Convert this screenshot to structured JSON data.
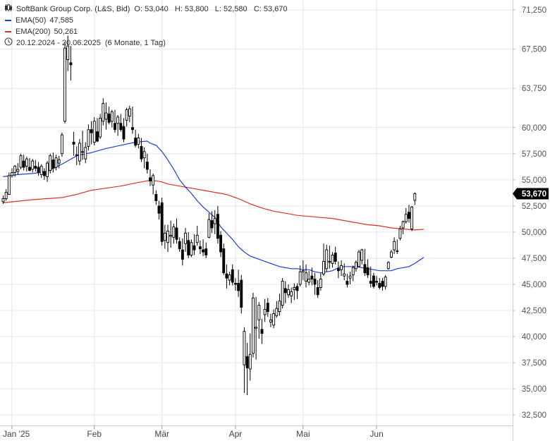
{
  "legend": {
    "instrument": "SoftBank Group Corp. (L&S, Bid)",
    "ohlc": "O: 53,040   H: 53,800   L: 52,580   C: 53,670",
    "ema50_label": "EMA(50)",
    "ema50_value": "47,585",
    "ema200_label": "EMA(200)",
    "ema200_value": "50,261",
    "range": "20.12.2024 - 20.06.2025",
    "period": "(6 Monate, 1 Tag)"
  },
  "colors": {
    "ema50": "#1a3ed6",
    "ema200": "#e0301e",
    "candle": "#000000",
    "grid": "#e6e6e6",
    "last_label_bg": "#000000"
  },
  "chart_data": {
    "type": "candlestick",
    "title": "SoftBank Group Corp. (L&S, Bid)",
    "ylim": [
      31500,
      72200
    ],
    "y_ticks": [
      {
        "v": 32500,
        "label": "32,500"
      },
      {
        "v": 35000,
        "label": "35,000"
      },
      {
        "v": 37500,
        "label": "37,500"
      },
      {
        "v": 40000,
        "label": "40,000"
      },
      {
        "v": 42500,
        "label": "42,500"
      },
      {
        "v": 45000,
        "label": "45,000"
      },
      {
        "v": 47500,
        "label": "47,500"
      },
      {
        "v": 50000,
        "label": "50,000"
      },
      {
        "v": 52500,
        "label": "52,500"
      },
      {
        "v": 55000,
        "label": "55,000"
      },
      {
        "v": 57500,
        "label": "57,500"
      },
      {
        "v": 60000,
        "label": "60,000"
      },
      {
        "v": 63750,
        "label": "63,750"
      },
      {
        "v": 67500,
        "label": "67,500"
      },
      {
        "v": 71250,
        "label": "71,250"
      }
    ],
    "x_ticks": [
      {
        "i": 3,
        "label": "Jan '25"
      },
      {
        "i": 31,
        "label": "Feb"
      },
      {
        "i": 54,
        "label": "Mär"
      },
      {
        "i": 79,
        "label": "Apr"
      },
      {
        "i": 102,
        "label": "Mai"
      },
      {
        "i": 127,
        "label": "Jun"
      }
    ],
    "last_price_label": "53,670",
    "last_price": 53670,
    "candles": [
      [
        52900,
        53500,
        52700,
        53200
      ],
      [
        53200,
        54100,
        53000,
        53800
      ],
      [
        53600,
        55700,
        53600,
        55400
      ],
      [
        55400,
        56100,
        55200,
        55700
      ],
      [
        55700,
        56400,
        55300,
        56300
      ],
      [
        55800,
        56600,
        55500,
        56000
      ],
      [
        56200,
        57500,
        56000,
        57300
      ],
      [
        56800,
        57400,
        55900,
        56200
      ],
      [
        56300,
        57200,
        55800,
        57000
      ],
      [
        56200,
        57100,
        55800,
        55900
      ],
      [
        56000,
        57000,
        55700,
        56800
      ],
      [
        56300,
        56900,
        55800,
        56100
      ],
      [
        56200,
        56700,
        55400,
        55700
      ],
      [
        55500,
        56500,
        55200,
        56300
      ],
      [
        55800,
        56100,
        55000,
        55400
      ],
      [
        55300,
        56800,
        54800,
        56600
      ],
      [
        55900,
        57500,
        55600,
        57300
      ],
      [
        56900,
        57600,
        55700,
        56100
      ],
      [
        56200,
        57400,
        55900,
        57100
      ],
      [
        56600,
        57300,
        56100,
        56900
      ],
      [
        57500,
        59500,
        57200,
        59300
      ],
      [
        60600,
        68200,
        60400,
        67600
      ],
      [
        66500,
        68800,
        65400,
        67800
      ],
      [
        66200,
        67800,
        64500,
        66000
      ],
      [
        58600,
        59600,
        57300,
        58400
      ],
      [
        57400,
        58200,
        56400,
        57400
      ],
      [
        56800,
        58900,
        56400,
        58500
      ],
      [
        57700,
        59700,
        56900,
        57700
      ],
      [
        57000,
        58600,
        56600,
        58100
      ],
      [
        58200,
        60300,
        57800,
        59800
      ],
      [
        59800,
        60600,
        58400,
        59500
      ],
      [
        58600,
        61000,
        58300,
        60600
      ],
      [
        59600,
        60900,
        58600,
        58700
      ],
      [
        59100,
        61300,
        58900,
        60900
      ],
      [
        60600,
        62800,
        60200,
        62300
      ],
      [
        60800,
        62400,
        59800,
        61400
      ],
      [
        61300,
        62000,
        60300,
        60500
      ],
      [
        60600,
        61700,
        60000,
        61500
      ],
      [
        60400,
        61700,
        59500,
        59800
      ],
      [
        60400,
        61200,
        59200,
        61000
      ],
      [
        60400,
        61300,
        59600,
        59800
      ],
      [
        60100,
        60900,
        58600,
        58900
      ],
      [
        60700,
        61900,
        60100,
        61700
      ],
      [
        61100,
        62100,
        60500,
        61800
      ],
      [
        60000,
        62000,
        59400,
        59800
      ],
      [
        59000,
        59800,
        58100,
        58300
      ],
      [
        58400,
        59400,
        58000,
        59000
      ],
      [
        58200,
        59000,
        56700,
        57000
      ],
      [
        57100,
        58100,
        56100,
        57700
      ],
      [
        56700,
        57500,
        55600,
        56000
      ],
      [
        55200,
        56000,
        54400,
        54900
      ],
      [
        54500,
        55600,
        53600,
        55400
      ],
      [
        53600,
        54000,
        52600,
        53000
      ],
      [
        52500,
        53000,
        51200,
        51800
      ],
      [
        52800,
        53300,
        48700,
        49100
      ],
      [
        49200,
        50700,
        48400,
        49900
      ],
      [
        49000,
        50700,
        48100,
        50100
      ],
      [
        49600,
        51100,
        48500,
        49700
      ],
      [
        49500,
        50800,
        48900,
        50500
      ],
      [
        50400,
        51300,
        48900,
        49300
      ],
      [
        49100,
        49500,
        48100,
        48400
      ],
      [
        48300,
        49400,
        46800,
        47400
      ],
      [
        48900,
        50400,
        48100,
        49900
      ],
      [
        49200,
        50000,
        47500,
        47800
      ],
      [
        47800,
        49300,
        47600,
        49000
      ],
      [
        48700,
        49800,
        47800,
        48300
      ],
      [
        49000,
        50600,
        48700,
        49700
      ],
      [
        48600,
        49200,
        47900,
        48400
      ],
      [
        48300,
        49300,
        47700,
        48100
      ],
      [
        48400,
        49000,
        47500,
        47800
      ],
      [
        49500,
        51800,
        49400,
        51200
      ],
      [
        51100,
        52000,
        49900,
        50400
      ],
      [
        50800,
        52100,
        49800,
        51300
      ],
      [
        51700,
        52500,
        48900,
        49400
      ],
      [
        49700,
        50100,
        47600,
        48100
      ],
      [
        48400,
        48900,
        45900,
        46100
      ],
      [
        46000,
        46900,
        44600,
        45600
      ],
      [
        45400,
        46200,
        44900,
        45900
      ],
      [
        46400,
        46900,
        44900,
        45200
      ],
      [
        45100,
        45600,
        44400,
        45000
      ],
      [
        45100,
        46400,
        43800,
        44400
      ],
      [
        45400,
        45900,
        42200,
        42800
      ],
      [
        37300,
        40900,
        34600,
        40500
      ],
      [
        38100,
        39400,
        34400,
        37000
      ],
      [
        36900,
        40300,
        35800,
        38300
      ],
      [
        38400,
        44200,
        38000,
        43700
      ],
      [
        40800,
        43800,
        37800,
        40900
      ],
      [
        41600,
        43300,
        39800,
        43000
      ],
      [
        40700,
        41700,
        39300,
        40300
      ],
      [
        42100,
        43600,
        41400,
        42600
      ],
      [
        43200,
        43700,
        41900,
        42400
      ],
      [
        41400,
        42200,
        40900,
        41600
      ],
      [
        41100,
        42600,
        40800,
        42200
      ],
      [
        42000,
        43400,
        41800,
        42700
      ],
      [
        42400,
        44100,
        42000,
        43400
      ],
      [
        43000,
        45600,
        42700,
        45300
      ],
      [
        44600,
        45300,
        43200,
        44200
      ],
      [
        44000,
        45000,
        43700,
        44500
      ],
      [
        43900,
        44700,
        43200,
        44300
      ],
      [
        44500,
        45100,
        43500,
        44700
      ],
      [
        44800,
        45100,
        43600,
        44400
      ],
      [
        45000,
        46800,
        44800,
        46200
      ],
      [
        46200,
        47300,
        45400,
        46300
      ],
      [
        45300,
        46900,
        44700,
        46100
      ],
      [
        45200,
        46300,
        44900,
        45500
      ],
      [
        45800,
        46600,
        44900,
        45500
      ],
      [
        45500,
        46100,
        44000,
        45000
      ],
      [
        44700,
        45400,
        43700,
        44000
      ],
      [
        44700,
        46100,
        44400,
        45500
      ],
      [
        46000,
        48900,
        45800,
        47200
      ],
      [
        46500,
        48800,
        46200,
        48300
      ],
      [
        47200,
        48700,
        46500,
        47200
      ],
      [
        47000,
        48100,
        46600,
        47800
      ],
      [
        48000,
        48600,
        46900,
        47200
      ],
      [
        46500,
        47200,
        45600,
        46300
      ],
      [
        46400,
        47300,
        45800,
        46800
      ],
      [
        45800,
        47000,
        45400,
        46000
      ],
      [
        45300,
        46000,
        44700,
        45000
      ],
      [
        45600,
        46200,
        45000,
        45800
      ],
      [
        45900,
        46800,
        45300,
        46600
      ],
      [
        46500,
        47300,
        46200,
        47100
      ],
      [
        46700,
        48300,
        46600,
        48100
      ],
      [
        47300,
        48400,
        46900,
        48300
      ],
      [
        46900,
        48400,
        45800,
        46100
      ],
      [
        46600,
        47400,
        45600,
        45900
      ],
      [
        45300,
        46700,
        44700,
        45100
      ],
      [
        45800,
        46100,
        44600,
        44800
      ],
      [
        45300,
        45800,
        44900,
        45200
      ],
      [
        45100,
        45600,
        44500,
        44700
      ],
      [
        45300,
        45600,
        44400,
        44800
      ],
      [
        44800,
        45900,
        44500,
        45700
      ],
      [
        46500,
        47200,
        46400,
        47100
      ],
      [
        47600,
        48300,
        47500,
        48100
      ],
      [
        48300,
        49500,
        47900,
        49100
      ],
      [
        48200,
        49300,
        47900,
        48200
      ],
      [
        49400,
        50600,
        49200,
        50300
      ],
      [
        50400,
        51100,
        49800,
        51000
      ],
      [
        51000,
        52300,
        50800,
        51700
      ],
      [
        51900,
        52600,
        50900,
        51300
      ],
      [
        50300,
        52500,
        50100,
        52400
      ],
      [
        53040,
        53800,
        52580,
        53670
      ]
    ],
    "ema50": [
      [
        0,
        55300
      ],
      [
        5,
        55500
      ],
      [
        10,
        55600
      ],
      [
        15,
        55800
      ],
      [
        20,
        56500
      ],
      [
        25,
        57300
      ],
      [
        30,
        57600
      ],
      [
        35,
        58000
      ],
      [
        40,
        58300
      ],
      [
        45,
        58600
      ],
      [
        49,
        58700
      ],
      [
        50,
        58500
      ],
      [
        52,
        58300
      ],
      [
        54,
        57700
      ],
      [
        56,
        56900
      ],
      [
        58,
        56000
      ],
      [
        60,
        55000
      ],
      [
        62,
        54300
      ],
      [
        64,
        53700
      ],
      [
        66,
        53000
      ],
      [
        68,
        52400
      ],
      [
        70,
        51900
      ],
      [
        72,
        51400
      ],
      [
        74,
        50500
      ],
      [
        76,
        49900
      ],
      [
        78,
        49300
      ],
      [
        80,
        48600
      ],
      [
        82,
        48100
      ],
      [
        84,
        47700
      ],
      [
        86,
        47500
      ],
      [
        88,
        47300
      ],
      [
        90,
        47100
      ],
      [
        92,
        46900
      ],
      [
        94,
        46700
      ],
      [
        96,
        46600
      ],
      [
        98,
        46500
      ],
      [
        100,
        46500
      ],
      [
        102,
        46400
      ],
      [
        104,
        46400
      ],
      [
        106,
        46200
      ],
      [
        108,
        46100
      ],
      [
        110,
        46200
      ],
      [
        112,
        46300
      ],
      [
        114,
        46600
      ],
      [
        116,
        46700
      ],
      [
        118,
        46700
      ],
      [
        120,
        46700
      ],
      [
        122,
        46600
      ],
      [
        124,
        46500
      ],
      [
        126,
        46400
      ],
      [
        128,
        46300
      ],
      [
        130,
        46300
      ],
      [
        132,
        46300
      ],
      [
        134,
        46500
      ],
      [
        136,
        46600
      ],
      [
        138,
        46700
      ],
      [
        140,
        47000
      ],
      [
        143,
        47585
      ]
    ],
    "ema200": [
      [
        0,
        52800
      ],
      [
        10,
        53100
      ],
      [
        20,
        53300
      ],
      [
        25,
        53600
      ],
      [
        30,
        54000
      ],
      [
        35,
        54200
      ],
      [
        40,
        54400
      ],
      [
        45,
        54700
      ],
      [
        49,
        54900
      ],
      [
        52,
        54900
      ],
      [
        54,
        54800
      ],
      [
        56,
        54600
      ],
      [
        60,
        54400
      ],
      [
        64,
        54200
      ],
      [
        68,
        54000
      ],
      [
        72,
        53800
      ],
      [
        76,
        53600
      ],
      [
        80,
        53200
      ],
      [
        84,
        52700
      ],
      [
        88,
        52300
      ],
      [
        92,
        52000
      ],
      [
        96,
        51800
      ],
      [
        100,
        51600
      ],
      [
        104,
        51500
      ],
      [
        108,
        51400
      ],
      [
        112,
        51300
      ],
      [
        116,
        51100
      ],
      [
        120,
        50900
      ],
      [
        124,
        50700
      ],
      [
        128,
        50600
      ],
      [
        132,
        50400
      ],
      [
        136,
        50300
      ],
      [
        140,
        50200
      ],
      [
        143,
        50261
      ]
    ]
  }
}
